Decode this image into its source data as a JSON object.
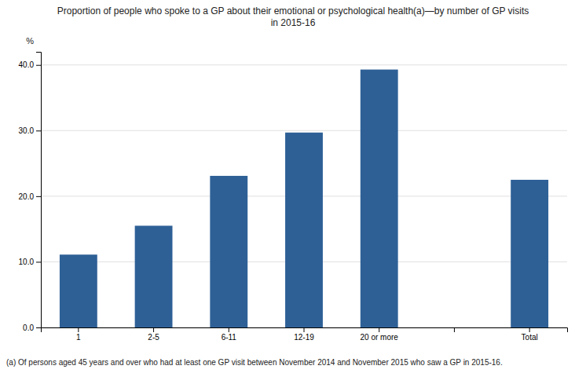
{
  "chart_data": {
    "type": "bar",
    "title": "Proportion of people who spoke to a GP about their emotional or psychological health(a)—by number of GP visits\nin 2015-16",
    "ylabel": "%",
    "footnote": "(a) Of persons aged 45 years and over who had at least one GP visit between November 2014 and November 2015 who saw a GP in 2015-16.",
    "categories": [
      "1",
      "2-5",
      "6-11",
      "12-19",
      "20 or more",
      null,
      "Total"
    ],
    "values": [
      11.1,
      15.5,
      23.1,
      29.7,
      39.3,
      null,
      22.5
    ],
    "color": "#2E6096",
    "ylim": [
      0,
      42
    ],
    "yticks": [
      {
        "value": 0,
        "label": "0.0"
      },
      {
        "value": 10,
        "label": "10.0"
      },
      {
        "value": 20,
        "label": "20.0"
      },
      {
        "value": 30,
        "label": "30.0"
      },
      {
        "value": 40,
        "label": "40.0"
      }
    ],
    "grid": true
  }
}
